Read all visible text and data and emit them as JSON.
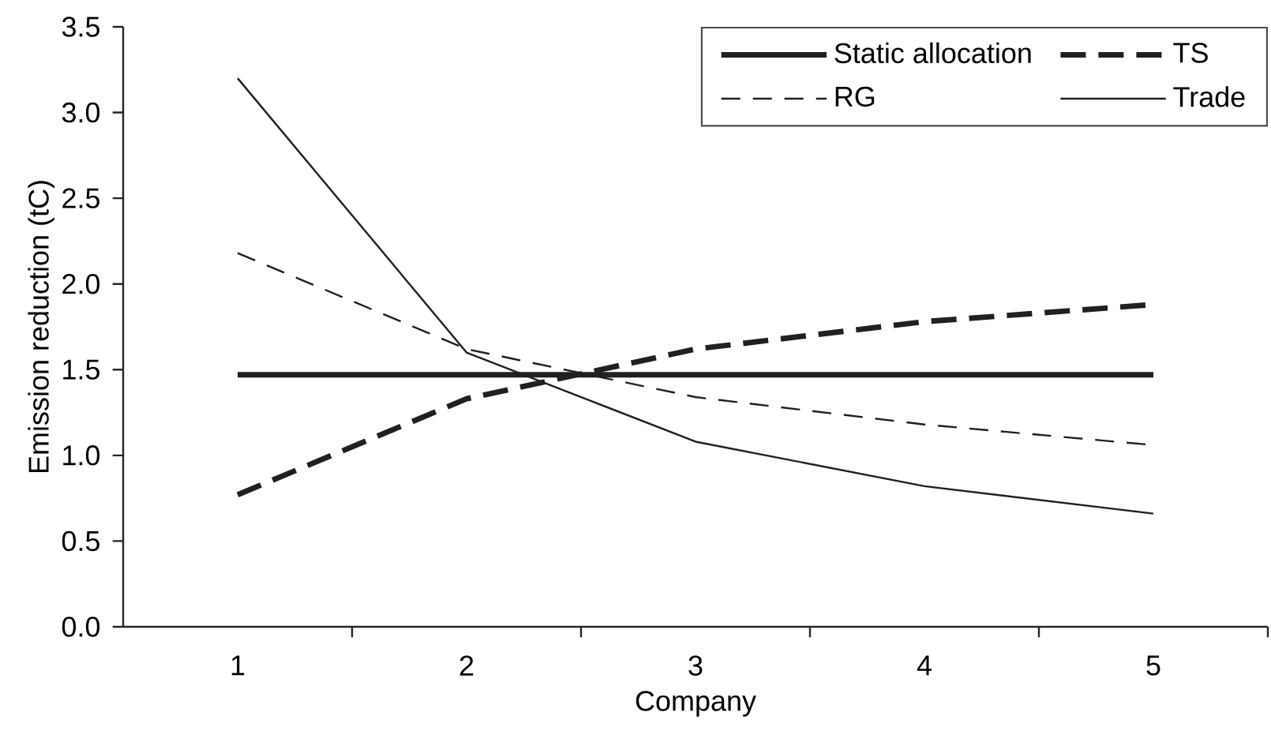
{
  "chart_data": {
    "type": "line",
    "xlabel": "Company",
    "ylabel": "Emission reduction (tC)",
    "categories": [
      "1",
      "2",
      "3",
      "4",
      "5"
    ],
    "series": [
      {
        "name": "Static allocation",
        "color": "#231f20",
        "line_style": "solid",
        "values": [
          1.47,
          1.47,
          1.47,
          1.47,
          1.47
        ]
      },
      {
        "name": "TS",
        "color": "#231f20",
        "line_style": "dashed",
        "values": [
          0.77,
          1.33,
          1.62,
          1.78,
          1.88
        ]
      },
      {
        "name": "RG",
        "color": "#231f20",
        "line_style": "dashed",
        "values": [
          2.18,
          1.62,
          1.34,
          1.18,
          1.06
        ]
      },
      {
        "name": "Trade",
        "color": "#231f20",
        "line_style": "solid",
        "values": [
          3.2,
          1.6,
          1.08,
          0.82,
          0.66
        ]
      }
    ],
    "ylim": [
      0,
      3.5
    ],
    "yticks": [
      {
        "value": 0,
        "label": "0.0"
      },
      0.5,
      {
        "value": 1,
        "label": "1.0"
      },
      1.5,
      {
        "value": 2,
        "label": "2.0"
      },
      2.5,
      {
        "value": 3,
        "label": "3.0"
      },
      3.5
    ],
    "grid": false,
    "legend": "top right",
    "marker": "none"
  }
}
